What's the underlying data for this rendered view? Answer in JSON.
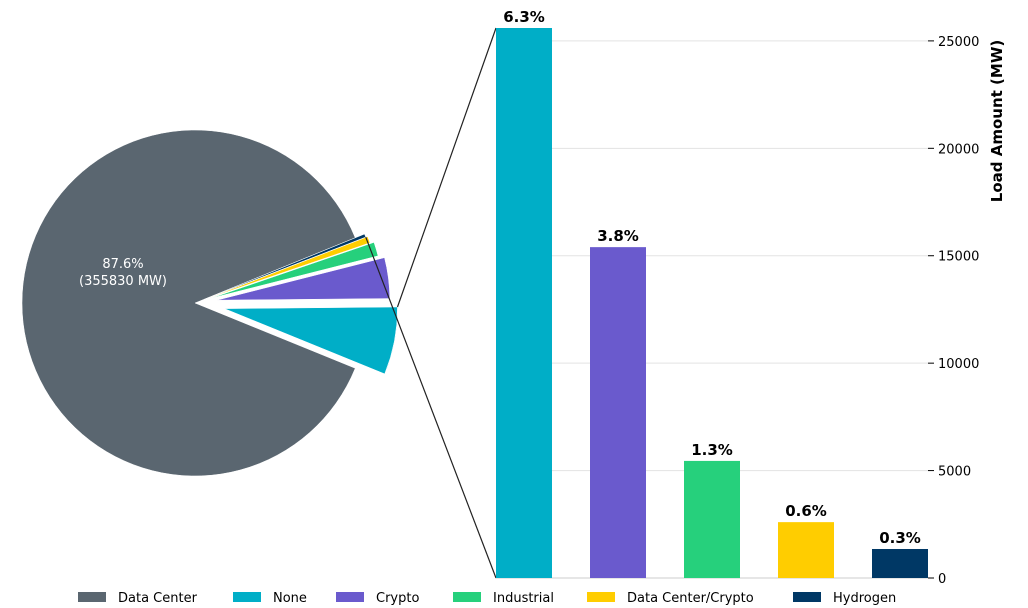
{
  "chart_data": {
    "type": "bar",
    "subtype": "pie-of-bar",
    "pie": {
      "segments": [
        {
          "name": "Data Center",
          "percent": 87.6,
          "mw": 355830,
          "color": "#5a6670",
          "label_line1": "87.6%",
          "label_line2": "(355830 MW)"
        },
        {
          "name": "None",
          "percent": 6.3,
          "color": "#00aec7"
        },
        {
          "name": "Crypto",
          "percent": 3.8,
          "color": "#6a5acd"
        },
        {
          "name": "Industrial",
          "percent": 1.3,
          "color": "#26d07c"
        },
        {
          "name": "Data Center/Crypto",
          "percent": 0.6,
          "color": "#ffcd00"
        },
        {
          "name": "Hydrogen",
          "percent": 0.3,
          "color": "#003865"
        }
      ]
    },
    "bars": {
      "categories": [
        "None",
        "Crypto",
        "Industrial",
        "Data Center/Crypto",
        "Hydrogen"
      ],
      "values": [
        25600,
        15400,
        5450,
        2600,
        1350
      ],
      "labels": [
        "6.3%",
        "3.8%",
        "1.3%",
        "0.6%",
        "0.3%"
      ],
      "colors": [
        "#00aec7",
        "#6a5acd",
        "#26d07c",
        "#ffcd00",
        "#003865"
      ],
      "ylabel": "Load Amount (MW)",
      "ylim": [
        0,
        25600
      ],
      "yticks": [
        0,
        5000,
        10000,
        15000,
        20000,
        25000
      ],
      "ytick_labels": [
        "0",
        "5000",
        "10000",
        "15000",
        "20000",
        "25000"
      ],
      "y_axis_side": "right",
      "grid": true
    },
    "legend": {
      "placement": "bottom",
      "entries": [
        "Data Center",
        "None",
        "Crypto",
        "Industrial",
        "Data Center/Crypto",
        "Hydrogen"
      ]
    }
  }
}
